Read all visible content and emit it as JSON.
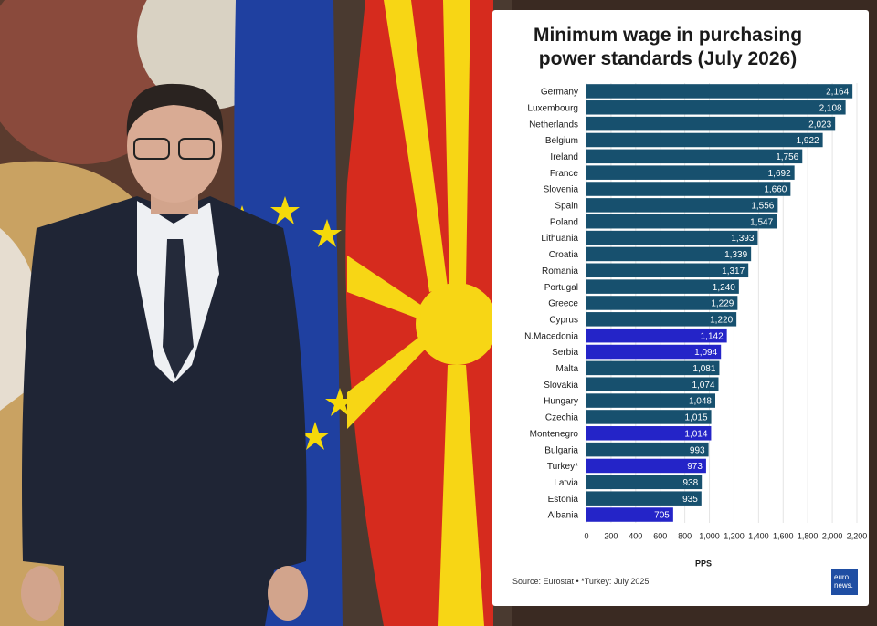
{
  "chart_data": {
    "type": "barh",
    "title": "Minimum wage in purchasing power standards (July 2026)",
    "categories": [
      "Germany",
      "Luxembourg",
      "Netherlands",
      "Belgium",
      "Ireland",
      "France",
      "Slovenia",
      "Spain",
      "Poland",
      "Lithuania",
      "Croatia",
      "Romania",
      "Portugal",
      "Greece",
      "Cyprus",
      "N.Macedonia",
      "Serbia",
      "Malta",
      "Slovakia",
      "Hungary",
      "Czechia",
      "Montenegro",
      "Bulgaria",
      "Turkey*",
      "Latvia",
      "Estonia",
      "Albania"
    ],
    "values": [
      2164,
      2108,
      2023,
      1922,
      1756,
      1692,
      1660,
      1556,
      1547,
      1393,
      1339,
      1317,
      1240,
      1229,
      1220,
      1142,
      1094,
      1081,
      1074,
      1048,
      1015,
      1014,
      993,
      973,
      938,
      935,
      705
    ],
    "value_labels": [
      "2,164",
      "2,108",
      "2,023",
      "1,922",
      "1,756",
      "1,692",
      "1,660",
      "1,556",
      "1,547",
      "1,393",
      "1,339",
      "1,317",
      "1,240",
      "1,229",
      "1,220",
      "1,142",
      "1,094",
      "1,081",
      "1,074",
      "1,048",
      "1,015",
      "1,014",
      "993",
      "973",
      "938",
      "935",
      "705"
    ],
    "colors": [
      "#17506e",
      "#17506e",
      "#17506e",
      "#17506e",
      "#17506e",
      "#17506e",
      "#17506e",
      "#17506e",
      "#17506e",
      "#17506e",
      "#17506e",
      "#17506e",
      "#17506e",
      "#17506e",
      "#17506e",
      "#2424c8",
      "#2424c8",
      "#17506e",
      "#17506e",
      "#17506e",
      "#17506e",
      "#2424c8",
      "#17506e",
      "#2424c8",
      "#17506e",
      "#17506e",
      "#2424c8"
    ],
    "xlim": [
      0,
      2200
    ],
    "xticks": [
      0,
      200,
      400,
      600,
      800,
      {
        "value": 1000,
        "label": "1,000"
      },
      {
        "value": 1200,
        "label": "1,200"
      },
      {
        "value": 1400,
        "label": "1,400"
      },
      {
        "value": 1600,
        "label": "1,600"
      },
      {
        "value": 1800,
        "label": "1,800"
      },
      {
        "value": 2000,
        "label": "2,000"
      },
      {
        "value": 2200,
        "label": "2,200"
      }
    ],
    "xlabel": "PPS",
    "grid": true,
    "source": "Source: Eurostat • *Turkey: July 2025"
  },
  "logo": [
    "euro",
    "news."
  ]
}
